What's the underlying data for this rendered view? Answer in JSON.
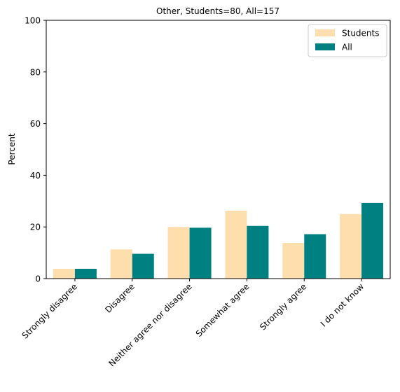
{
  "chart_data": {
    "type": "bar",
    "title": "Other, Students=80, All=157",
    "xlabel": "",
    "ylabel": "Percent",
    "ylim": [
      0,
      100
    ],
    "yticks": [
      0,
      20,
      40,
      60,
      80,
      100
    ],
    "grid": false,
    "legend_position": "top-right",
    "categories": [
      "Strongly disagree",
      "Disagree",
      "Neither agree nor disagree",
      "Somewhat agree",
      "Strongly agree",
      "I do not know"
    ],
    "series": [
      {
        "name": "Students",
        "color": "#FFDEAD",
        "values": [
          3.8,
          11.3,
          20.0,
          26.3,
          13.8,
          25.0
        ]
      },
      {
        "name": "All",
        "color": "#008080",
        "values": [
          3.8,
          9.6,
          19.7,
          20.4,
          17.2,
          29.3
        ]
      }
    ]
  }
}
